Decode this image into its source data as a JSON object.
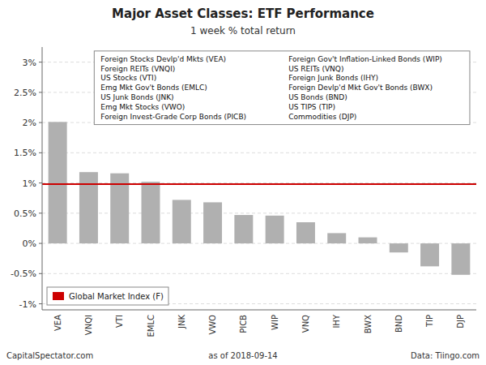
{
  "chart_data": {
    "type": "bar",
    "title": "Major Asset Classes: ETF Performance",
    "subtitle": "1 week % total return",
    "categories": [
      "VEA",
      "VNQI",
      "VTI",
      "EMLC",
      "JNK",
      "VWO",
      "PICB",
      "WIP",
      "VNQ",
      "IHY",
      "BWX",
      "BND",
      "TIP",
      "DJP"
    ],
    "values": [
      2.01,
      1.18,
      1.16,
      1.02,
      0.72,
      0.68,
      0.47,
      0.46,
      0.35,
      0.17,
      0.1,
      -0.15,
      -0.38,
      -0.52
    ],
    "color": "#b0b0b0",
    "ylim": [
      -1.1,
      3.25
    ],
    "yticks": [
      {
        "value": -1.0,
        "label": "-1%"
      },
      {
        "value": -0.5,
        "label": "-0.5%"
      },
      {
        "value": 0.0,
        "label": "0%"
      },
      {
        "value": 0.5,
        "label": "0.5%"
      },
      {
        "value": 1.0,
        "label": "1%"
      },
      {
        "value": 1.5,
        "label": "1.5%"
      },
      {
        "value": 2.0,
        "label": "2%"
      },
      {
        "value": 2.5,
        "label": "2.5%"
      },
      {
        "value": 3.0,
        "label": "3%"
      }
    ],
    "grid": true,
    "reference_line": {
      "value": 0.98,
      "label": "Global Market Index (F)",
      "color": "#cc0000"
    },
    "legend": "lower left",
    "annotations": [
      "Foreign Stocks Devlp'd Mkts (VEA)",
      "Foreign REITs (VNQI)",
      "US Stocks (VTI)",
      "Emg Mkt Gov't Bonds (EMLC)",
      "US Junk Bonds (JNK)",
      "Emg Mkt Stocks (VWO)",
      "Foreign Invest-Grade Corp Bonds (PICB)",
      "Foreign Gov't Inflation-Linked Bonds (WIP)",
      "US REITs (VNQ)",
      "Foreign Junk Bonds (IHY)",
      "Foreign Devlp'd Mkt Gov't Bonds (BWX)",
      "US Bonds (BND)",
      "US TIPS (TIP)",
      "Commodities (DJP)"
    ],
    "footer": [
      "CapitalSpectator.com",
      "as of  2018-09-14",
      "Data: Tiingo.com"
    ]
  }
}
